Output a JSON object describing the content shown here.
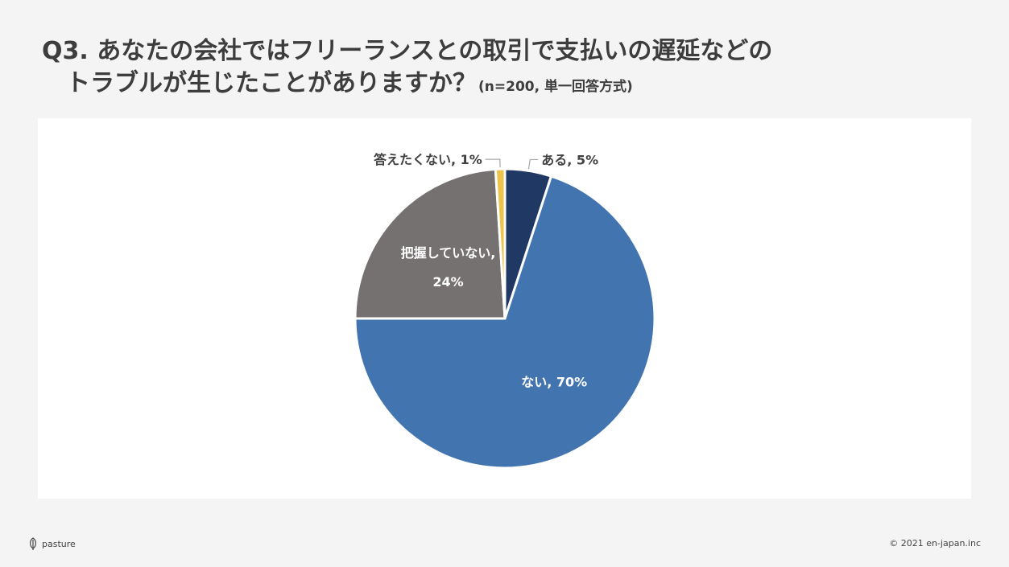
{
  "title": {
    "line1": "Q3. あなたの会社ではフリーランスとの取引で支払いの遅延などの",
    "line2": "トラブルが生じたことがありますか？",
    "note": "(n=200, 単一回答方式)"
  },
  "chart_data": {
    "type": "pie",
    "slices": [
      {
        "label": "ある",
        "value": 5,
        "display": "ある, 5%",
        "color": "#203864"
      },
      {
        "label": "ない",
        "value": 70,
        "display": "ない, 70%",
        "color": "#4274af"
      },
      {
        "label": "把握していない",
        "value": 24,
        "display_line1": "把握していない,",
        "display_line2": "24%",
        "color": "#767171"
      },
      {
        "label": "答えたくない",
        "value": 1,
        "display": "答えたくない, 1%",
        "color": "#ecc44c"
      }
    ]
  },
  "footer": {
    "logo_text": "pasture",
    "logo_icon": "leaf-icon",
    "copyright": "© 2021 en-japan.inc"
  }
}
